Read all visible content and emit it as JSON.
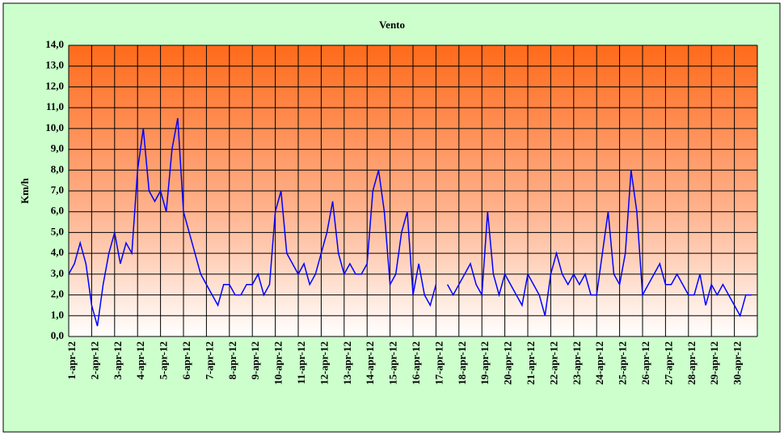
{
  "chart_data": {
    "type": "line",
    "title": "Vento",
    "y_label": "Km/h",
    "xlim": [
      1,
      31
    ],
    "xticks": [
      {
        "value": 1,
        "label": "1-apr-12"
      },
      {
        "value": 2,
        "label": "2-apr-12"
      },
      {
        "value": 3,
        "label": "3-apr-12"
      },
      {
        "value": 4,
        "label": "4-apr-12"
      },
      {
        "value": 5,
        "label": "5-apr-12"
      },
      {
        "value": 6,
        "label": "6-apr-12"
      },
      {
        "value": 7,
        "label": "7-apr-12"
      },
      {
        "value": 8,
        "label": "8-apr-12"
      },
      {
        "value": 9,
        "label": "9-apr-12"
      },
      {
        "value": 10,
        "label": "10-apr-12"
      },
      {
        "value": 11,
        "label": "11-apr-12"
      },
      {
        "value": 12,
        "label": "12-apr-12"
      },
      {
        "value": 13,
        "label": "13-apr-12"
      },
      {
        "value": 14,
        "label": "14-apr-12"
      },
      {
        "value": 15,
        "label": "15-apr-12"
      },
      {
        "value": 16,
        "label": "16-apr-12"
      },
      {
        "value": 17,
        "label": "17-apr-12"
      },
      {
        "value": 18,
        "label": "18-apr-12"
      },
      {
        "value": 19,
        "label": "19-apr-12"
      },
      {
        "value": 20,
        "label": "20-apr-12"
      },
      {
        "value": 21,
        "label": "21-apr-12"
      },
      {
        "value": 22,
        "label": "22-apr-12"
      },
      {
        "value": 23,
        "label": "23-apr-12"
      },
      {
        "value": 24,
        "label": "24-apr-12"
      },
      {
        "value": 25,
        "label": "25-apr-12"
      },
      {
        "value": 26,
        "label": "26-apr-12"
      },
      {
        "value": 27,
        "label": "27-apr-12"
      },
      {
        "value": 28,
        "label": "28-apr-12"
      },
      {
        "value": 29,
        "label": "29-apr-12"
      },
      {
        "value": 30,
        "label": "30-apr-12"
      }
    ],
    "ylim": [
      0,
      14
    ],
    "yticks": [
      {
        "value": 0,
        "label": "0,0"
      },
      {
        "value": 1,
        "label": "1,0"
      },
      {
        "value": 2,
        "label": "2,0"
      },
      {
        "value": 3,
        "label": "3,0"
      },
      {
        "value": 4,
        "label": "4,0"
      },
      {
        "value": 5,
        "label": "5,0"
      },
      {
        "value": 6,
        "label": "6,0"
      },
      {
        "value": 7,
        "label": "7,0"
      },
      {
        "value": 8,
        "label": "8,0"
      },
      {
        "value": 9,
        "label": "9,0"
      },
      {
        "value": 10,
        "label": "10,0"
      },
      {
        "value": 11,
        "label": "11,0"
      },
      {
        "value": 12,
        "label": "12,0"
      },
      {
        "value": 13,
        "label": "13,0"
      },
      {
        "value": 14,
        "label": "14,0"
      }
    ],
    "grid": true,
    "x": [
      1,
      1.25,
      1.5,
      1.75,
      2,
      2.25,
      2.5,
      2.75,
      3,
      3.25,
      3.5,
      3.75,
      4,
      4.25,
      4.5,
      4.75,
      5,
      5.25,
      5.5,
      5.75,
      6,
      6.25,
      6.5,
      6.75,
      7,
      7.25,
      7.5,
      7.75,
      8,
      8.25,
      8.5,
      8.75,
      9,
      9.25,
      9.5,
      9.75,
      10,
      10.25,
      10.5,
      10.75,
      11,
      11.25,
      11.5,
      11.75,
      12,
      12.25,
      12.5,
      12.75,
      13,
      13.25,
      13.5,
      13.75,
      14,
      14.25,
      14.5,
      14.75,
      15,
      15.25,
      15.5,
      15.75,
      16,
      16.25,
      16.5,
      16.75,
      17,
      17.25,
      17.5,
      17.75,
      18,
      18.25,
      18.5,
      18.75,
      19,
      19.25,
      19.5,
      19.75,
      20,
      20.25,
      20.5,
      20.75,
      21,
      21.25,
      21.5,
      21.75,
      22,
      22.25,
      22.5,
      22.75,
      23,
      23.25,
      23.5,
      23.75,
      24,
      24.25,
      24.5,
      24.75,
      25,
      25.25,
      25.5,
      25.75,
      26,
      26.25,
      26.5,
      26.75,
      27,
      27.25,
      27.5,
      27.75,
      28,
      28.25,
      28.5,
      28.75,
      29,
      29.25,
      29.5,
      29.75,
      30,
      30.25,
      30.5,
      30.75
    ],
    "series": [
      {
        "name": "Vento",
        "color": "#0000ff",
        "values": [
          3,
          3.5,
          4.5,
          3.5,
          1.5,
          0.5,
          2.5,
          4,
          5,
          3.5,
          4.5,
          4,
          8,
          10,
          7,
          6.5,
          7,
          6,
          9,
          10.5,
          6,
          5,
          4,
          3,
          2.5,
          2,
          1.5,
          2.5,
          2.5,
          2,
          2,
          2.5,
          2.5,
          3,
          2,
          2.5,
          6,
          7,
          4,
          3.5,
          3,
          3.5,
          2.5,
          3,
          4,
          5,
          6.5,
          4,
          3,
          3.5,
          3,
          3,
          3.5,
          7,
          8,
          6,
          2.5,
          3,
          5,
          6,
          2,
          3.5,
          2,
          1.5,
          2.5,
          null,
          2.5,
          2,
          2.5,
          3,
          3.5,
          2.5,
          2,
          6,
          3,
          2,
          3,
          2.5,
          2,
          1.5,
          3,
          2.5,
          2,
          1,
          3,
          4,
          3,
          2.5,
          3,
          2.5,
          3,
          2,
          2,
          4,
          6,
          3,
          2.5,
          4,
          8,
          6,
          2,
          2.5,
          3,
          3.5,
          2.5,
          2.5,
          3,
          2.5,
          2,
          2,
          3,
          1.5,
          2.5,
          2,
          2.5,
          2,
          1.5,
          1,
          2,
          2
        ]
      }
    ]
  }
}
